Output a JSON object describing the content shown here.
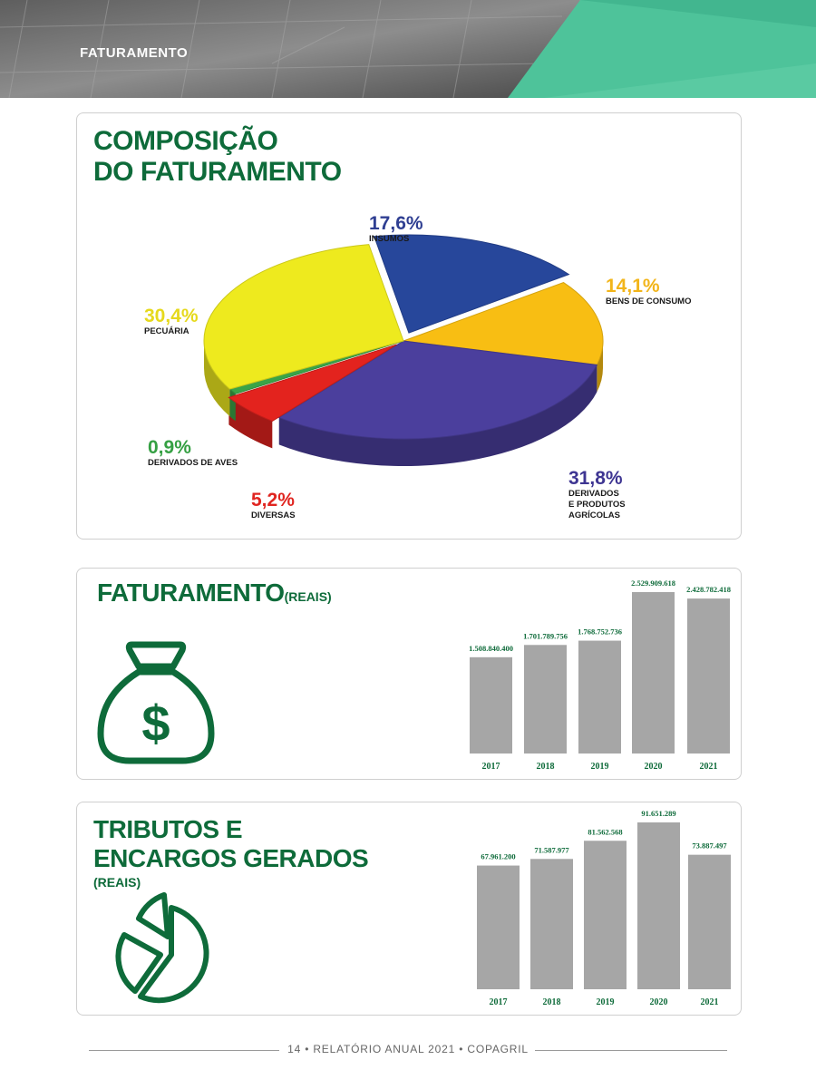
{
  "header": {
    "section": "FATURAMENTO"
  },
  "composition": {
    "title_line1": "COMPOSIÇÃO",
    "title_line2": "DO FATURAMENTO"
  },
  "faturamento": {
    "title": "FATURAMENTO",
    "unit": "(REAIS)"
  },
  "tributos": {
    "title_line1": "TRIBUTOS E",
    "title_line2": "ENCARGOS GERADOS",
    "unit": "(REAIS)"
  },
  "footer": {
    "page": "14",
    "text": "RELATÓRIO ANUAL 2021",
    "company": "COPAGRIL"
  },
  "icons": {
    "money": "money-bag-icon",
    "pie": "pie-chart-icon"
  },
  "chart_data": [
    {
      "type": "pie",
      "title": "COMPOSIÇÃO DO FATURAMENTO",
      "slices": [
        {
          "label": "INSUMOS",
          "pct_text": "17,6%",
          "value": 17.6,
          "color": "#27479b",
          "label_color": "#2f3f92"
        },
        {
          "label": "BENS DE CONSUMO",
          "pct_text": "14,1%",
          "value": 14.1,
          "color": "#f8be13",
          "label_color": "#f2b51a"
        },
        {
          "label": "DERIVADOS E PRODUTOS AGRÍCOLAS",
          "label_lines": [
            "DERIVADOS",
            "E PRODUTOS",
            "AGRÍCOLAS"
          ],
          "pct_text": "31,8%",
          "value": 31.8,
          "color": "#4b3f9d",
          "label_color": "#3e3592"
        },
        {
          "label": "DIVERSAS",
          "pct_text": "5,2%",
          "value": 5.2,
          "color": "#e3231e",
          "label_color": "#e02520"
        },
        {
          "label": "DERIVADOS DE AVES",
          "pct_text": "0,9%",
          "value": 0.9,
          "color": "#3aa447",
          "label_color": "#35a043"
        },
        {
          "label": "PECUÁRIA",
          "pct_text": "30,4%",
          "value": 30.4,
          "color": "#eeea1e",
          "label_color": "#e6d91c"
        }
      ]
    },
    {
      "type": "bar",
      "title": "FATURAMENTO (REAIS)",
      "categories": [
        "2017",
        "2018",
        "2019",
        "2020",
        "2021"
      ],
      "values": [
        1508840400,
        1701789756,
        1768752736,
        2529909618,
        2428782418
      ],
      "value_labels": [
        "1.508.840.400",
        "1.701.789.756",
        "1.768.752.736",
        "2.529.909.618",
        "2.428.782.418"
      ],
      "bar_color": "#a6a6a6",
      "label_color": "#0e6b3a"
    },
    {
      "type": "bar",
      "title": "TRIBUTOS E ENCARGOS GERADOS (REAIS)",
      "categories": [
        "2017",
        "2018",
        "2019",
        "2020",
        "2021"
      ],
      "values": [
        67961200,
        71587977,
        81562568,
        91651289,
        73887497
      ],
      "value_labels": [
        "67.961.200",
        "71.587.977",
        "81.562.568",
        "91.651.289",
        "73.887.497"
      ],
      "bar_color": "#a6a6a6",
      "label_color": "#0e6b3a"
    }
  ]
}
